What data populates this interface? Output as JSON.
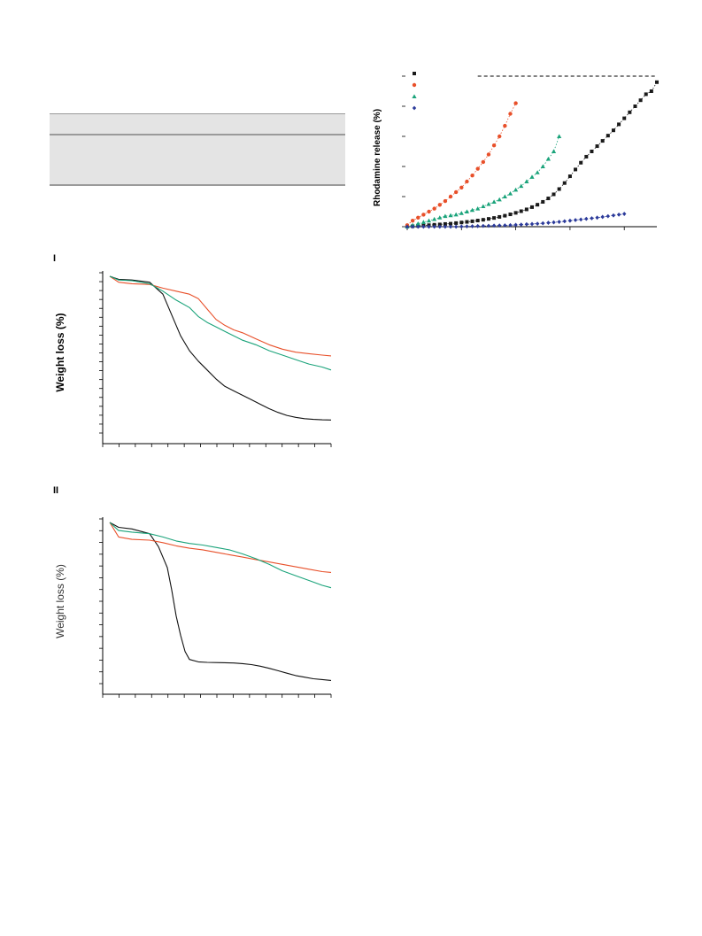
{
  "chart_data": [
    {
      "type": "scatter",
      "ylabel": "Rhodamine release (%)",
      "xlabel": "",
      "colors": {
        "black": "#1a1a1a",
        "red": "#e8502a",
        "green": "#1aa37a",
        "blue": "#2b3a9a"
      },
      "series": [
        {
          "marker": "square",
          "color": "#1a1a1a",
          "x": [
            0,
            1,
            2,
            3,
            4,
            5,
            6,
            7,
            8,
            9,
            10,
            11,
            12,
            13,
            14,
            15,
            16,
            17,
            18,
            19,
            20,
            21,
            22,
            23,
            24,
            25,
            26,
            27,
            28,
            29,
            30,
            31,
            32,
            33,
            34,
            35,
            36,
            37,
            38,
            39,
            40,
            41,
            42,
            43,
            44,
            45,
            46
          ],
          "y": [
            0,
            0.3,
            0.5,
            0.8,
            1.0,
            1.3,
            1.5,
            1.8,
            2.0,
            2.4,
            2.8,
            3.2,
            3.6,
            4.1,
            4.6,
            5.2,
            5.8,
            6.5,
            7.3,
            8.2,
            9.2,
            10.3,
            11.5,
            13.0,
            14.6,
            16.5,
            18.8,
            21.5,
            25,
            29,
            33.5,
            38,
            42.5,
            46.5,
            50,
            53.5,
            57,
            60.5,
            64,
            68,
            72,
            76,
            80,
            84,
            88,
            90,
            96
          ]
        },
        {
          "marker": "circle",
          "color": "#e8502a",
          "x": [
            0,
            1,
            2,
            3,
            4,
            5,
            6,
            7,
            8,
            9,
            10,
            11,
            12,
            13,
            14,
            15,
            16,
            17,
            18,
            19,
            20
          ],
          "y": [
            1,
            4,
            6,
            8,
            10,
            12,
            14.5,
            17,
            20,
            23,
            26,
            30,
            34,
            38.5,
            43,
            48,
            54,
            60,
            67,
            75,
            82
          ]
        },
        {
          "marker": "triangle",
          "color": "#1aa37a",
          "x": [
            0,
            1,
            2,
            3,
            4,
            5,
            6,
            7,
            8,
            9,
            10,
            11,
            12,
            13,
            14,
            15,
            16,
            17,
            18,
            19,
            20,
            21,
            22,
            23,
            24,
            25,
            26,
            27,
            28
          ],
          "y": [
            0,
            1,
            2,
            3,
            4,
            5,
            6,
            7,
            7.5,
            8,
            9,
            10,
            11,
            12,
            13.5,
            15,
            16.5,
            18,
            20,
            22,
            24.5,
            27,
            30,
            33,
            36,
            40,
            45,
            50,
            60
          ]
        },
        {
          "marker": "diamond",
          "color": "#2b3a9a",
          "x": [
            0,
            1,
            2,
            3,
            4,
            5,
            6,
            7,
            8,
            9,
            10,
            11,
            12,
            13,
            14,
            15,
            16,
            17,
            18,
            19,
            20,
            21,
            22,
            23,
            24,
            25,
            26,
            27,
            28,
            29,
            30,
            31,
            32,
            33,
            34,
            35,
            36,
            37,
            38,
            39,
            40
          ],
          "y": [
            0,
            0,
            0,
            0,
            0,
            0,
            0,
            0,
            0,
            0,
            0.1,
            0.2,
            0.3,
            0.4,
            0.5,
            0.6,
            0.7,
            0.8,
            0.9,
            1.0,
            1.2,
            1.4,
            1.6,
            1.8,
            2.0,
            2.3,
            2.6,
            2.9,
            3.2,
            3.6,
            4.0,
            4.4,
            4.8,
            5.2,
            5.6,
            6.0,
            6.5,
            7.0,
            7.5,
            8.0,
            8.5
          ]
        }
      ],
      "ylim": [
        0,
        100
      ],
      "xlim": [
        0,
        46
      ]
    },
    {
      "type": "line",
      "panel_label": "I",
      "ylabel": "Weight loss (%)",
      "xlabel": "",
      "xlim": [
        0,
        100
      ],
      "ylim": [
        0,
        100
      ],
      "series": [
        {
          "color": "#111111",
          "x": [
            0,
            4,
            10,
            18,
            24,
            28,
            32,
            36,
            40,
            44,
            48,
            52,
            56,
            60,
            64,
            68,
            72,
            76,
            80,
            84,
            88,
            92,
            96,
            100
          ],
          "y": [
            100,
            98,
            97.5,
            96,
            88,
            74,
            60,
            50,
            43,
            37,
            31,
            26,
            23,
            20,
            17,
            14,
            11,
            8.5,
            6.5,
            5.2,
            4.3,
            3.8,
            3.5,
            3.4
          ]
        },
        {
          "color": "#e8502a",
          "x": [
            0,
            4,
            10,
            18,
            24,
            30,
            36,
            40,
            44,
            48,
            52,
            56,
            60,
            66,
            72,
            78,
            84,
            90,
            96,
            100
          ],
          "y": [
            100,
            96,
            95,
            94.5,
            92,
            90,
            88,
            85,
            78,
            71,
            67,
            64,
            62,
            58,
            54,
            51,
            49,
            48,
            47,
            46.5
          ]
        },
        {
          "color": "#1aa37a",
          "x": [
            0,
            4,
            10,
            18,
            24,
            30,
            36,
            40,
            44,
            48,
            52,
            56,
            60,
            66,
            72,
            78,
            84,
            90,
            96,
            100
          ],
          "y": [
            100,
            97.5,
            97,
            95,
            90,
            84,
            79,
            73,
            69,
            66,
            63,
            60,
            57,
            54,
            50,
            47,
            44,
            41,
            39,
            37
          ]
        }
      ]
    },
    {
      "type": "line",
      "panel_label": "II",
      "ylabel": "Weight loss (%)",
      "xlabel": "",
      "xlim": [
        0,
        100
      ],
      "ylim": [
        0,
        100
      ],
      "series": [
        {
          "color": "#111111",
          "x": [
            0,
            4,
            10,
            18,
            22,
            26,
            28,
            30,
            32,
            34,
            36,
            40,
            44,
            50,
            56,
            60,
            64,
            68,
            72,
            76,
            80,
            84,
            88,
            92,
            96,
            100
          ],
          "y": [
            100,
            97,
            96,
            93,
            85,
            72,
            58,
            42,
            30,
            20,
            15,
            13.5,
            13.2,
            13,
            12.8,
            12.4,
            11.8,
            10.8,
            9.5,
            8,
            6.5,
            5,
            4,
            3,
            2.5,
            2
          ]
        },
        {
          "color": "#e8502a",
          "x": [
            0,
            4,
            10,
            18,
            24,
            30,
            36,
            42,
            48,
            54,
            60,
            66,
            72,
            78,
            84,
            90,
            96,
            100
          ],
          "y": [
            100,
            91,
            89.5,
            89,
            87.5,
            85.5,
            84,
            83,
            81.5,
            80,
            78.5,
            77,
            75.5,
            74,
            72.5,
            71,
            69.5,
            69
          ]
        },
        {
          "color": "#1aa37a",
          "x": [
            0,
            4,
            10,
            18,
            24,
            30,
            36,
            42,
            48,
            54,
            60,
            66,
            72,
            78,
            84,
            90,
            96,
            100
          ],
          "y": [
            100,
            95,
            94,
            93,
            91,
            88.5,
            87,
            86,
            84.5,
            83,
            80.5,
            77.5,
            74,
            70,
            67,
            64,
            61,
            59.5
          ]
        }
      ]
    }
  ]
}
